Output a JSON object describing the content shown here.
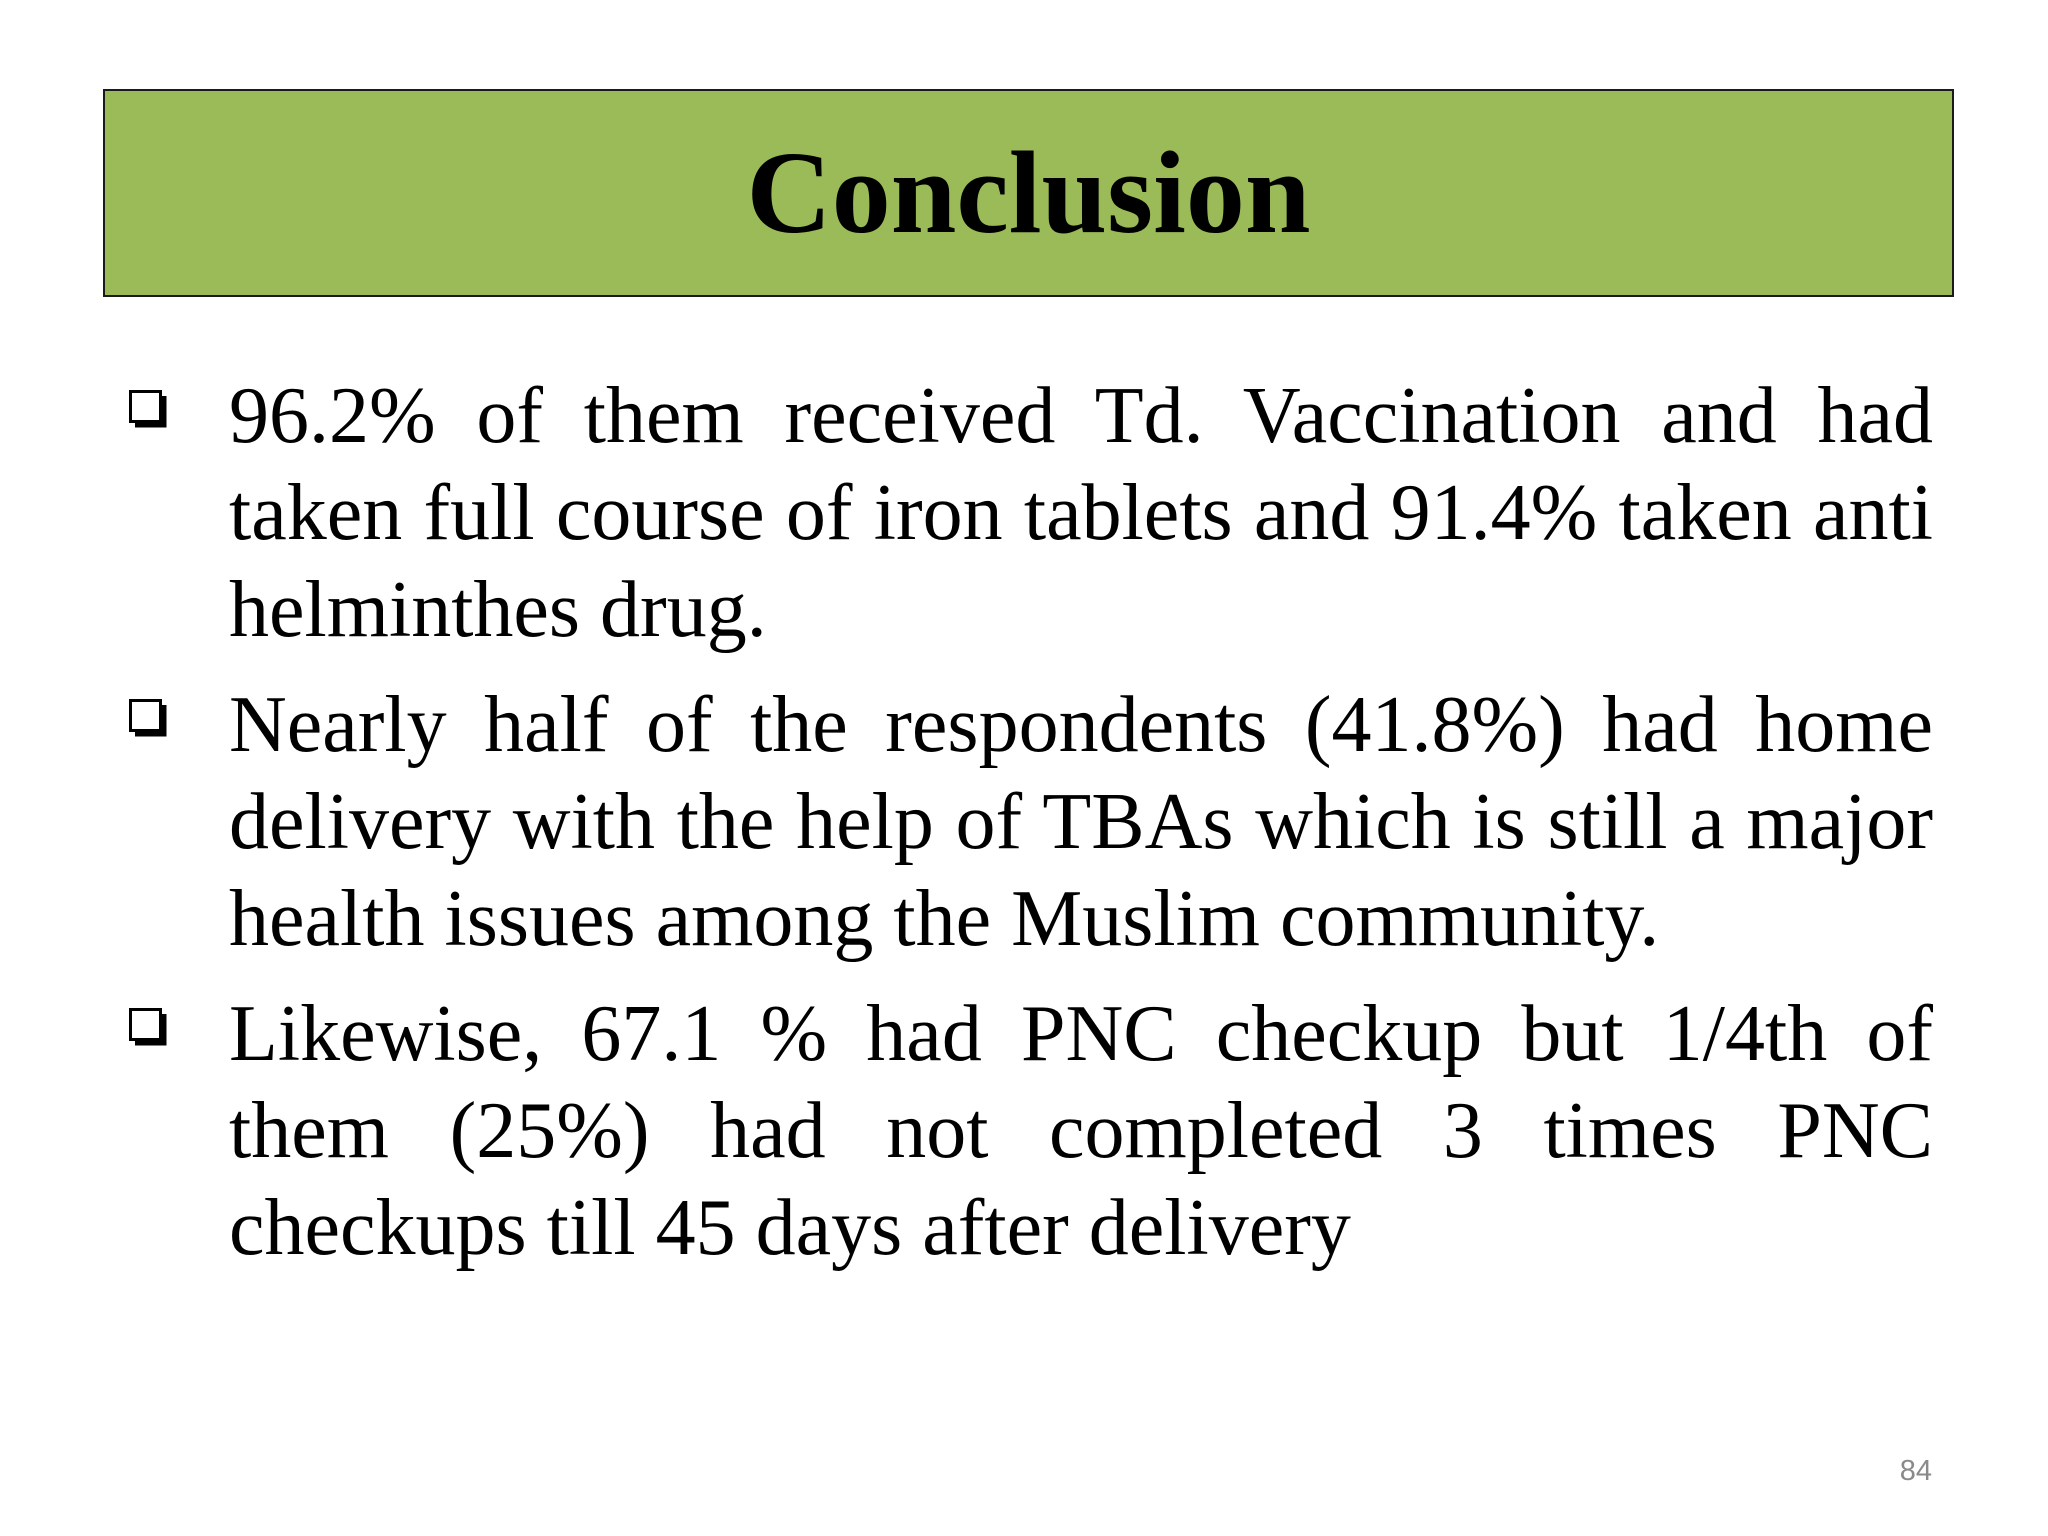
{
  "slide": {
    "title": "Conclusion",
    "title_bg_color": "#9bbb59",
    "bullets": [
      {
        "icon": "checkbox-square-icon",
        "text": "96.2% of them received Td. Vaccination and had taken full course of iron tablets and 91.4% taken anti helminthes drug."
      },
      {
        "icon": "checkbox-square-icon",
        "text": "Nearly half of the respondents (41.8%) had home delivery with the help of TBAs which is still a major health issues among the Muslim community."
      },
      {
        "icon": "checkbox-square-icon",
        "text": "Likewise, 67.1 % had PNC checkup but 1/4th of them (25%) had not completed 3 times PNC checkups till 45 days after delivery"
      }
    ],
    "page_number": "84"
  }
}
